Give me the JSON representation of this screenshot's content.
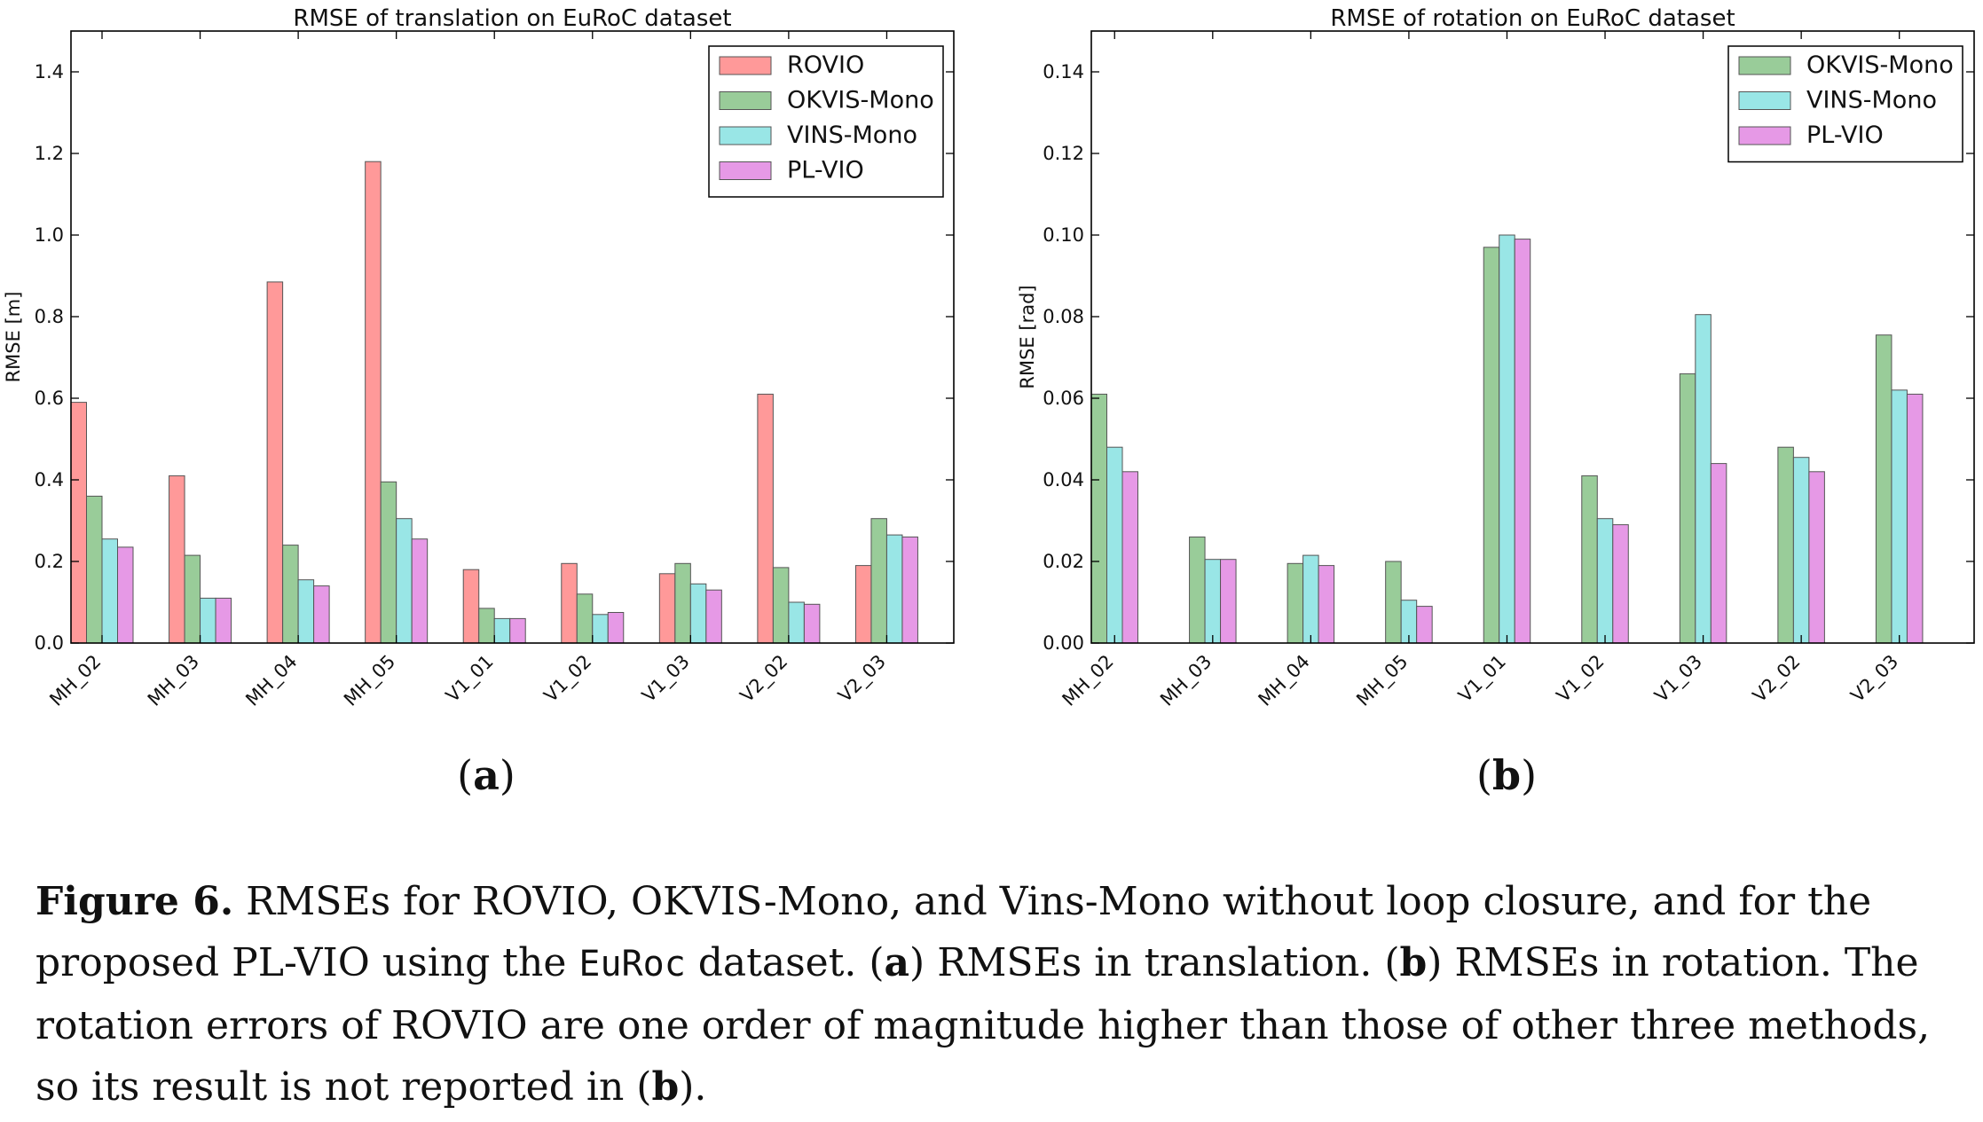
{
  "colors": {
    "ROVIO": "#ff9999",
    "OKVIS-Mono": "#99cc99",
    "VINS-Mono": "#99e6e6",
    "PL-VIO": "#e699e6"
  },
  "chart_data": [
    {
      "type": "bar",
      "panel_label": "a",
      "title": "RMSE of translation on EuRoC dataset",
      "xlabel": "",
      "ylabel": "RMSE [m]",
      "ylim": [
        0,
        1.5
      ],
      "yticks": [
        "0.0",
        "0.2",
        "0.4",
        "0.6",
        "0.8",
        "1.0",
        "1.2",
        "1.4"
      ],
      "grid": false,
      "legend_position": "top-right",
      "categories": [
        "MH_02",
        "MH_03",
        "MH_04",
        "MH_05",
        "V1_01",
        "V1_02",
        "V1_03",
        "V2_02",
        "V2_03"
      ],
      "series": [
        {
          "name": "ROVIO",
          "values": [
            0.59,
            0.41,
            0.885,
            1.18,
            0.18,
            0.195,
            0.17,
            0.61,
            0.19
          ]
        },
        {
          "name": "OKVIS-Mono",
          "values": [
            0.36,
            0.215,
            0.24,
            0.395,
            0.085,
            0.12,
            0.195,
            0.185,
            0.305
          ]
        },
        {
          "name": "VINS-Mono",
          "values": [
            0.255,
            0.11,
            0.155,
            0.305,
            0.06,
            0.07,
            0.145,
            0.1,
            0.265
          ]
        },
        {
          "name": "PL-VIO",
          "values": [
            0.235,
            0.11,
            0.14,
            0.255,
            0.06,
            0.075,
            0.13,
            0.095,
            0.26
          ]
        }
      ]
    },
    {
      "type": "bar",
      "panel_label": "b",
      "title": "RMSE of rotation on EuRoC dataset",
      "xlabel": "",
      "ylabel": "RMSE [rad]",
      "ylim": [
        0,
        0.15
      ],
      "yticks": [
        "0.00",
        "0.02",
        "0.04",
        "0.06",
        "0.08",
        "0.10",
        "0.12",
        "0.14"
      ],
      "grid": false,
      "legend_position": "top-right",
      "categories": [
        "MH_02",
        "MH_03",
        "MH_04",
        "MH_05",
        "V1_01",
        "V1_02",
        "V1_03",
        "V2_02",
        "V2_03"
      ],
      "series": [
        {
          "name": "OKVIS-Mono",
          "values": [
            0.061,
            0.026,
            0.0195,
            0.02,
            0.097,
            0.041,
            0.066,
            0.048,
            0.0755
          ]
        },
        {
          "name": "VINS-Mono",
          "values": [
            0.048,
            0.0205,
            0.0215,
            0.0105,
            0.1,
            0.0305,
            0.0805,
            0.0455,
            0.062
          ]
        },
        {
          "name": "PL-VIO",
          "values": [
            0.042,
            0.0205,
            0.019,
            0.009,
            0.099,
            0.029,
            0.044,
            0.042,
            0.061
          ]
        }
      ]
    }
  ],
  "caption": {
    "figure_label": "Figure 6.",
    "text_1": " RMSEs for ROVIO, OKVIS-Mono, and Vins-Mono without loop closure, and for the proposed PL-VIO using the ",
    "dataset_name": "EuRoc",
    "text_2": " dataset. (",
    "label_a": "a",
    "text_3": ") RMSEs in translation. (",
    "label_b": "b",
    "text_4": ") RMSEs in rotation. The rotation errors of ROVIO are one order of magnitude higher than those of other three methods, so its result is not reported in (",
    "label_b2": "b",
    "text_5": ")."
  }
}
